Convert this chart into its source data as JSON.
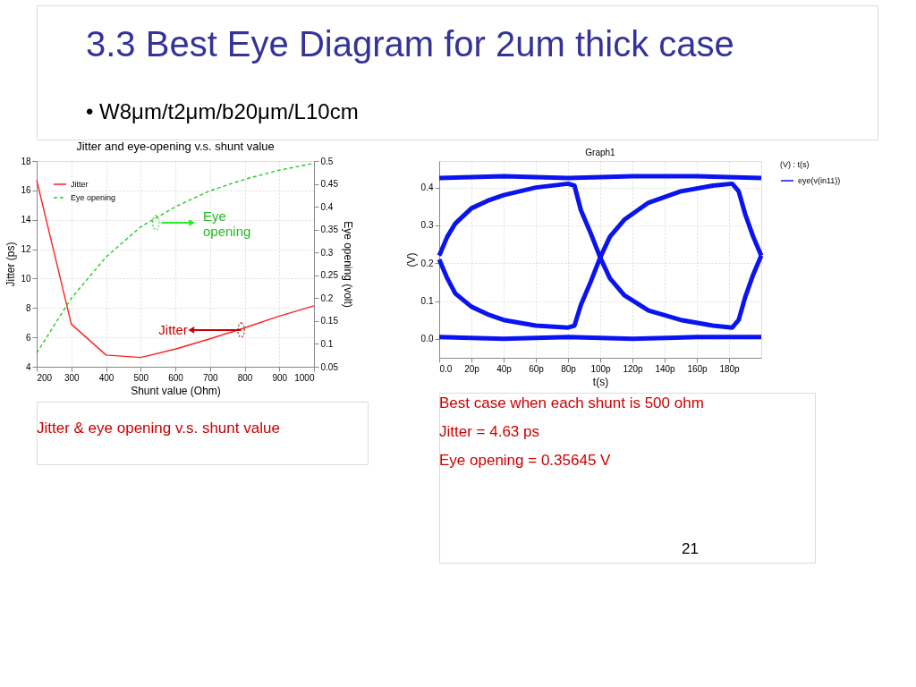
{
  "chart_data": [
    {
      "type": "line",
      "title": "Jitter and eye-opening v.s. shunt value",
      "xlabel": "Shunt value (Ohm)",
      "ylabel": "Jitter (ps)",
      "y2label": "Eye opening (volt)",
      "x": [
        200,
        300,
        400,
        500,
        600,
        700,
        800,
        900,
        1000
      ],
      "series": [
        {
          "name": "Jitter",
          "color": "#ff2020",
          "line_style": "solid",
          "values": [
            16.7,
            6.9,
            4.8,
            4.63,
            5.2,
            5.9,
            6.65,
            7.45,
            8.15
          ]
        },
        {
          "name": "Eye opening",
          "color": "#22cc22",
          "line_style": "dashed",
          "axis": "y2",
          "values": [
            0.08,
            0.2,
            0.29,
            0.356,
            0.4,
            0.435,
            0.46,
            0.48,
            0.495
          ]
        }
      ],
      "xlim": [
        200,
        1000
      ],
      "xticks": [
        200,
        300,
        400,
        500,
        600,
        700,
        800,
        900,
        1000
      ],
      "ylim": [
        4,
        18
      ],
      "yticks": [
        4,
        6,
        8,
        10,
        12,
        14,
        16,
        18
      ],
      "y2lim": [
        0.05,
        0.5
      ],
      "y2ticks": [
        0.05,
        0.1,
        0.15,
        0.2,
        0.25,
        0.3,
        0.35,
        0.4,
        0.45,
        0.5
      ],
      "grid": true,
      "legend": "top left",
      "annotations": [
        "3.3 Best Eye Diagram for 2um thick case",
        "• W8μm/t2μm/b20μm/L10cm",
        "Eye opening",
        {
          "text": "Jitter",
          "x": 790,
          "y": 6.5
        },
        "Jitter & eye opening v.s. shunt value"
      ]
    },
    {
      "type": "line",
      "title": "Graph1",
      "xlabel": "t(s)",
      "ylabel": "(V)",
      "legend_title": "(V) : t(s)",
      "series": [
        {
          "name": "eye(v(in11))",
          "color": "#0a14f0",
          "x": [
            0,
            40,
            80,
            120,
            160,
            200
          ],
          "values": [
            0.425,
            0.43,
            0.425,
            0.43,
            0.43,
            0.425
          ]
        },
        {
          "color": "#0a14f0",
          "x": [
            0,
            40,
            80,
            120,
            160,
            200
          ],
          "values": [
            0.005,
            0.0,
            0.005,
            0.0,
            0.005,
            0.005
          ]
        },
        {
          "color": "#0a14f0",
          "x": [
            0,
            5,
            10,
            20,
            30,
            40,
            60,
            80,
            84,
            88,
            94,
            100,
            106,
            115,
            130,
            150,
            170,
            182,
            186,
            190,
            195,
            200
          ],
          "values": [
            0.22,
            0.27,
            0.305,
            0.345,
            0.365,
            0.38,
            0.4,
            0.41,
            0.405,
            0.34,
            0.28,
            0.215,
            0.16,
            0.115,
            0.075,
            0.05,
            0.035,
            0.03,
            0.05,
            0.11,
            0.17,
            0.22
          ]
        },
        {
          "color": "#0a14f0",
          "x": [
            0,
            5,
            10,
            20,
            30,
            40,
            60,
            80,
            84,
            88,
            94,
            100,
            106,
            115,
            130,
            150,
            170,
            182,
            186,
            190,
            195,
            200
          ],
          "values": [
            0.21,
            0.16,
            0.12,
            0.085,
            0.065,
            0.05,
            0.035,
            0.03,
            0.035,
            0.09,
            0.15,
            0.215,
            0.27,
            0.315,
            0.36,
            0.39,
            0.405,
            0.41,
            0.39,
            0.33,
            0.27,
            0.22
          ]
        }
      ],
      "xlim": [
        0,
        200
      ],
      "xticks": [
        {
          "value": 0,
          "label": "0.0"
        },
        {
          "value": 20,
          "label": "20p"
        },
        {
          "value": 40,
          "label": "40p"
        },
        {
          "value": 60,
          "label": "60p"
        },
        {
          "value": 80,
          "label": "80p"
        },
        {
          "value": 100,
          "label": "100p"
        },
        {
          "value": 120,
          "label": "120p"
        },
        {
          "value": 140,
          "label": "140p"
        },
        {
          "value": 160,
          "label": "160p"
        },
        {
          "value": 180,
          "label": "180p"
        }
      ],
      "ylim": [
        -0.05,
        0.47
      ],
      "yticks": [
        {
          "value": 0,
          "label": "0.0"
        },
        0.1,
        0.2,
        0.3,
        0.4
      ],
      "grid": true,
      "legend": "top right",
      "annotations": [
        "Best case when each shunt is 500 ohm",
        "Jitter = 4.63 ps",
        "Eye opening = 0.35645 V",
        "21"
      ]
    }
  ]
}
